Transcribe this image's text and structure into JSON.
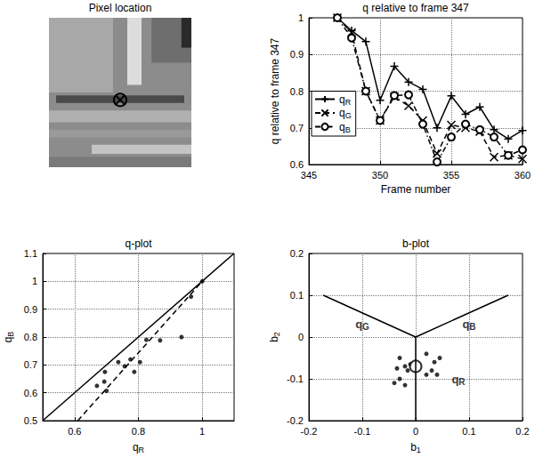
{
  "chart_data": [
    {
      "type": "image",
      "title": "Pixel location",
      "tick_labels": false
    },
    {
      "type": "line",
      "title": "q relative to frame 347",
      "xlabel": "Frame number",
      "ylabel": "q relative to frame 347",
      "xlim": [
        345,
        360
      ],
      "xticks": [
        345,
        350,
        355,
        360
      ],
      "ylim": [
        0.6,
        1
      ],
      "yticks": [
        0.6,
        0.7,
        0.8,
        0.9,
        1
      ],
      "grid": true,
      "legend": "lower left",
      "x": [
        347,
        348,
        349,
        350,
        351,
        352,
        353,
        354,
        355,
        356,
        357,
        358,
        359,
        360
      ],
      "series": [
        {
          "name": "qR",
          "marker": "plus",
          "line_style": "solid",
          "values": [
            1.0,
            0.965,
            0.935,
            0.775,
            0.868,
            0.825,
            0.805,
            0.7,
            0.787,
            0.737,
            0.757,
            0.695,
            0.67,
            0.693
          ]
        },
        {
          "name": "qG",
          "marker": "x",
          "line_style": "dashed",
          "values": [
            1.0,
            0.96,
            0.8,
            0.72,
            0.785,
            0.76,
            0.72,
            0.63,
            0.708,
            0.7,
            0.69,
            0.62,
            0.625,
            0.615
          ]
        },
        {
          "name": "qB",
          "marker": "circle",
          "line_style": "dashdot",
          "values": [
            1.0,
            0.945,
            0.8,
            0.72,
            0.788,
            0.79,
            0.71,
            0.607,
            0.675,
            0.71,
            0.695,
            0.675,
            0.625,
            0.64
          ]
        }
      ]
    },
    {
      "type": "scatter",
      "title": "q-plot",
      "xlabel": "qR",
      "ylabel": "qB",
      "xlim": [
        0.5,
        1.1
      ],
      "xticks": [
        0.6,
        0.8,
        1
      ],
      "ylim": [
        0.5,
        1.1
      ],
      "yticks": [
        0.5,
        0.6,
        0.7,
        0.8,
        0.9,
        1,
        1.1
      ],
      "grid": true,
      "series": [
        {
          "type": "scatter",
          "marker": "dot",
          "x": [
            1.0,
            0.965,
            0.935,
            0.775,
            0.868,
            0.825,
            0.805,
            0.7,
            0.787,
            0.737,
            0.757,
            0.695,
            0.67,
            0.693
          ],
          "y": [
            1.0,
            0.945,
            0.8,
            0.72,
            0.788,
            0.79,
            0.71,
            0.607,
            0.675,
            0.71,
            0.695,
            0.675,
            0.625,
            0.64
          ]
        },
        {
          "type": "line",
          "line_style": "solid",
          "x": [
            0.5,
            1.1
          ],
          "y": [
            0.5,
            1.1
          ]
        },
        {
          "type": "line",
          "line_style": "dashed",
          "x": [
            0.61,
            1.0
          ],
          "y": [
            0.5,
            1.0
          ]
        }
      ]
    },
    {
      "type": "scatter",
      "title": "b-plot",
      "xlabel": "b1",
      "ylabel": "b2",
      "xlim": [
        -0.2,
        0.2
      ],
      "xticks": [
        -0.2,
        -0.1,
        0,
        0.1,
        0.2
      ],
      "ylim": [
        -0.2,
        0.2
      ],
      "yticks": [
        -0.2,
        -0.1,
        0,
        0.1,
        0.2
      ],
      "grid": true,
      "series": [
        {
          "type": "line",
          "line_style": "solid",
          "x": [
            -0.173,
            0,
            0.173
          ],
          "y": [
            0.1,
            0,
            0.1
          ]
        },
        {
          "type": "line",
          "line_style": "solid",
          "x": [
            0,
            0
          ],
          "y": [
            0,
            -0.2
          ]
        },
        {
          "type": "scatter",
          "marker": "dot",
          "x": [
            -0.03,
            -0.02,
            -0.035,
            -0.01,
            -0.015,
            0.02,
            0.035,
            0.045,
            0.03,
            0.02,
            -0.03,
            -0.04,
            -0.02,
            0.04
          ],
          "y": [
            -0.05,
            -0.07,
            -0.075,
            -0.065,
            -0.08,
            -0.04,
            -0.06,
            -0.05,
            -0.08,
            -0.09,
            -0.1,
            -0.11,
            -0.115,
            -0.09
          ]
        },
        {
          "type": "scatter",
          "marker": "circle",
          "x": [
            0
          ],
          "y": [
            -0.07
          ]
        }
      ],
      "annotations": [
        {
          "text": "qG",
          "x": -0.1,
          "y": 0.03
        },
        {
          "text": "qB",
          "x": 0.1,
          "y": 0.03
        },
        {
          "text": "qR",
          "x": 0.08,
          "y": -0.1
        }
      ]
    }
  ]
}
